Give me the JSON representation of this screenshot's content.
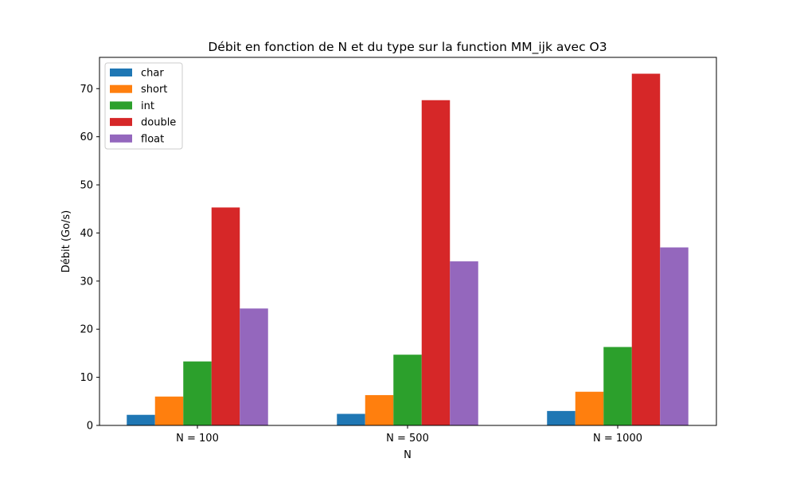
{
  "chart_data": {
    "type": "bar",
    "title": "Débit en fonction de N et du type sur la function MM_ijk avec O3",
    "xlabel": "N",
    "ylabel": "Débit (Go/s)",
    "categories": [
      "N = 100",
      "N = 500",
      "N = 1000"
    ],
    "ylim": [
      0,
      76.5
    ],
    "yticks": [
      0,
      10,
      20,
      30,
      40,
      50,
      60,
      70
    ],
    "legend_position": "top-left",
    "grid": false,
    "series": [
      {
        "name": "char",
        "color": "#1f77b4",
        "values": [
          2.2,
          2.4,
          3.0
        ]
      },
      {
        "name": "short",
        "color": "#ff7f0e",
        "values": [
          6.0,
          6.3,
          7.0
        ]
      },
      {
        "name": "int",
        "color": "#2ca02c",
        "values": [
          13.3,
          14.7,
          16.3
        ]
      },
      {
        "name": "double",
        "color": "#d62728",
        "values": [
          45.3,
          67.6,
          73.1
        ]
      },
      {
        "name": "float",
        "color": "#9467bd",
        "values": [
          24.3,
          34.1,
          37.0
        ]
      }
    ]
  }
}
